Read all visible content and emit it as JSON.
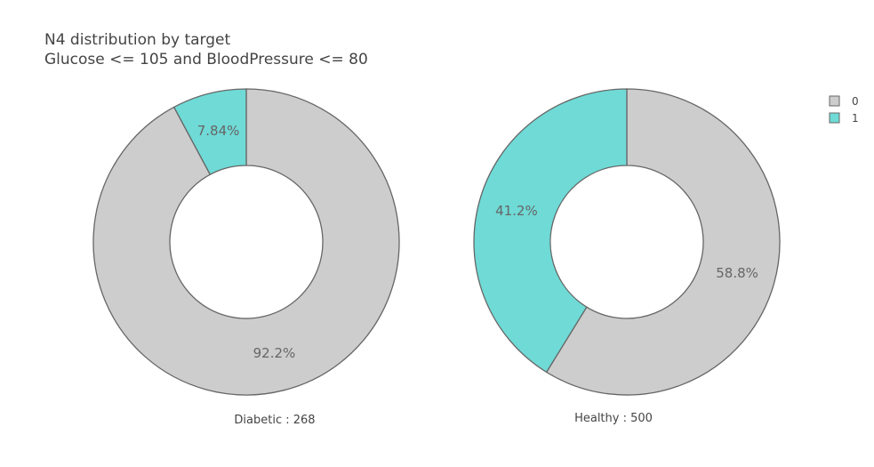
{
  "chart_data": {
    "type": "pie",
    "title": "N4 distribution by target",
    "subtitle": "Glucose <= 105 and BloodPressure <= 80",
    "legend_position": "top-right",
    "legend": [
      {
        "name": "0",
        "color": "#cdcdcd"
      },
      {
        "name": "1",
        "color": "#6fdad6"
      }
    ],
    "charts": [
      {
        "caption": "Diabetic : 268",
        "slices": [
          {
            "category": "0",
            "label": "92.2%",
            "value": 92.2
          },
          {
            "category": "1",
            "label": "7.84%",
            "value": 7.84
          }
        ]
      },
      {
        "caption": "Healthy : 500",
        "slices": [
          {
            "category": "0",
            "label": "58.8%",
            "value": 58.8
          },
          {
            "category": "1",
            "label": "41.2%",
            "value": 41.2
          }
        ]
      }
    ]
  }
}
